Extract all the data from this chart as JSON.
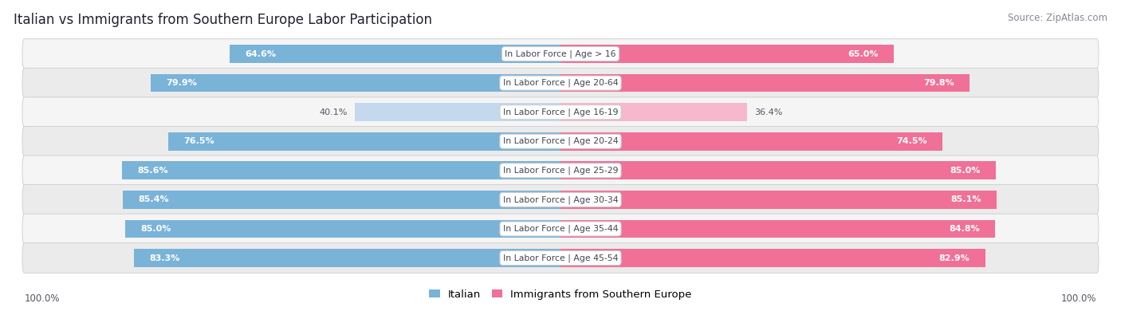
{
  "title": "Italian vs Immigrants from Southern Europe Labor Participation",
  "source": "Source: ZipAtlas.com",
  "categories": [
    "In Labor Force | Age > 16",
    "In Labor Force | Age 20-64",
    "In Labor Force | Age 16-19",
    "In Labor Force | Age 20-24",
    "In Labor Force | Age 25-29",
    "In Labor Force | Age 30-34",
    "In Labor Force | Age 35-44",
    "In Labor Force | Age 45-54"
  ],
  "italian_values": [
    64.6,
    79.9,
    40.1,
    76.5,
    85.6,
    85.4,
    85.0,
    83.3
  ],
  "immigrant_values": [
    65.0,
    79.8,
    36.4,
    74.5,
    85.0,
    85.1,
    84.8,
    82.9
  ],
  "italian_color": "#7ab3d8",
  "italian_light_color": "#c5d9ee",
  "immigrant_color": "#f07098",
  "immigrant_light_color": "#f5b8cc",
  "row_bg_light": "#f5f5f5",
  "row_bg_dark": "#ebebeb",
  "legend_italian": "Italian",
  "legend_immigrant": "Immigrants from Southern Europe",
  "axis_label": "100.0%",
  "low_threshold": 60,
  "max_value": 100.0
}
